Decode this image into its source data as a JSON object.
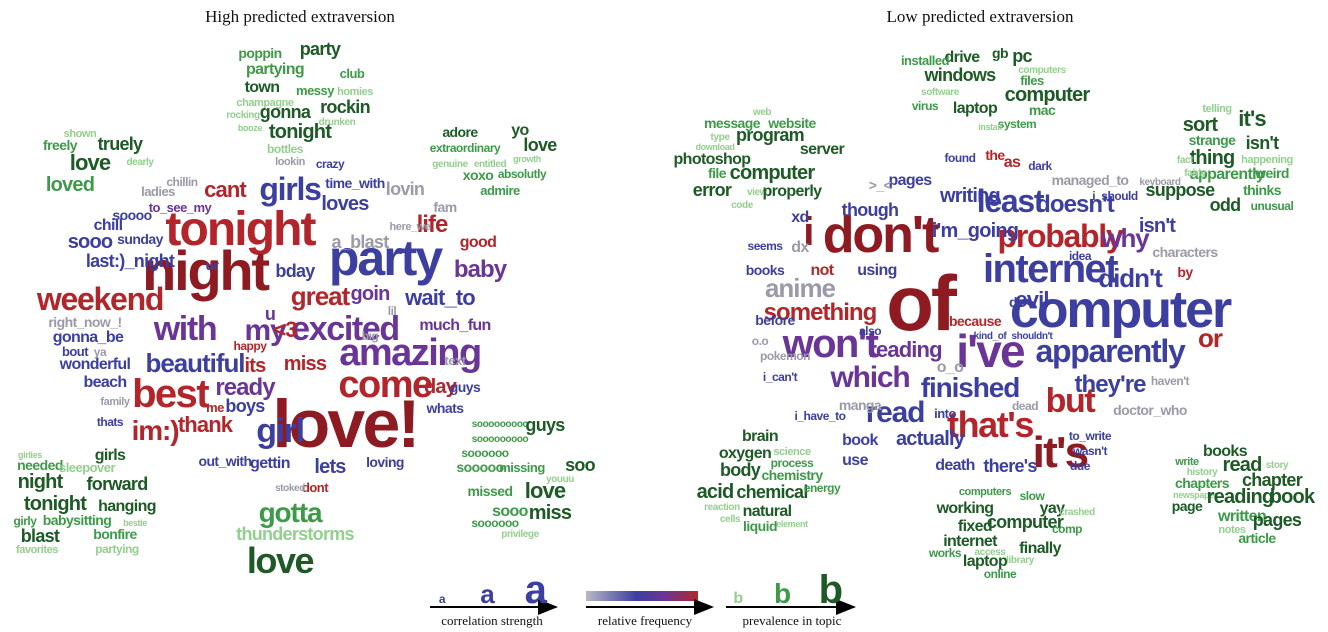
{
  "panels": [
    {
      "title": "High predicted extraversion",
      "words": [
        "tonight",
        "night",
        "party",
        "love!",
        "amazing",
        "come",
        "best",
        "excited",
        "girls",
        "weekend",
        "with",
        "my",
        "beautiful",
        "girl",
        "im:)",
        "great",
        "life",
        "baby",
        "wait_to",
        "cant",
        "loves",
        "ready",
        "thank",
        "miss",
        "day",
        "its",
        "goin",
        "much_fun",
        "<3",
        "good",
        "sooo",
        "last:)_night",
        "chill",
        "soooo",
        "sunday",
        "to_see_my",
        "ladies",
        "chillin",
        "a_blast",
        "time_with",
        "crazy",
        "lookin",
        "lovin",
        "fam",
        "here_we",
        "bday",
        "ur",
        "u",
        "gonna_be",
        "bout",
        "wonderful",
        "beach",
        "right_now_!",
        "ya",
        "family",
        "thats",
        "boys",
        "me",
        "happy",
        "gettin",
        "out_with",
        "lets",
        "loving",
        "dont",
        "whats",
        "guys",
        "text",
        "big",
        "lil",
        "stoked",
        "thunderstorms",
        "gotta",
        "love",
        "party",
        "poppin",
        "partying",
        "club",
        "town",
        "messy",
        "homies",
        "champagne",
        "rockin",
        "gonna",
        "rocking",
        "drunken",
        "booze",
        "tonight",
        "bottles",
        "adore",
        "yo",
        "love",
        "extraordinary",
        "genuine",
        "entitled",
        "growth",
        "xoxo",
        "absolutly",
        "admire",
        "shown",
        "freely",
        "truely",
        "dearly",
        "love",
        "loved",
        "girls",
        "needed",
        "sleepover",
        "night",
        "forward",
        "tonight",
        "hanging",
        "girly",
        "babysitting",
        "blast",
        "bonfire",
        "favorites",
        "partying",
        "bestie",
        "girlies",
        "sooooooooo",
        "guys",
        "sooooooooo",
        "soooooo",
        "soo",
        "sooooo",
        "missing",
        "youuu",
        "love",
        "missed",
        "sooo",
        "miss",
        "soooooo",
        "privilege"
      ]
    },
    {
      "title": "Low predicted extraversion",
      "words": [
        "of",
        "computer",
        "don't",
        "internet",
        "i've",
        "i",
        "probably",
        "least",
        "it's",
        "that's",
        "but",
        "won't",
        "which",
        "apparently",
        "finished",
        "they're",
        "read",
        "didn't",
        "why",
        "doesn't",
        "isn't",
        "or",
        "something",
        "anime",
        "evil",
        "i'm_going",
        "writing",
        "though",
        "xd",
        "dx",
        "not",
        "using",
        "reading",
        "actually",
        "there's",
        "book",
        "use",
        "death",
        "pages",
        "found",
        "the",
        "as",
        "dark",
        "managed_to",
        "keyboard",
        ">_<",
        "o_o",
        "manga",
        "before",
        "books",
        "seems",
        "o.o",
        "pokemon",
        "i_can't",
        "i_have_to",
        "into",
        "dead",
        "doctor_who",
        "haven't",
        "to_write",
        "wasn't",
        "due",
        "characters",
        "by",
        "idea",
        "i_should",
        "because",
        "also",
        "d:",
        "kind_of",
        "shouldn't",
        "drive",
        "gb",
        "pc",
        "installed",
        "computers",
        "windows",
        "files",
        "software",
        "computer",
        "virus",
        "laptop",
        "mac",
        "system",
        "install",
        "web",
        "message",
        "website",
        "type",
        "program",
        "download",
        "server",
        "photoshop",
        "file",
        "computer",
        "error",
        "view",
        "properly",
        "code",
        "telling",
        "sort",
        "it's",
        "strange",
        "isn't",
        "thing",
        "fact",
        "happening",
        "apparently",
        "weird",
        "fairly",
        "suppose",
        "thinks",
        "odd",
        "unusual",
        "brain",
        "oxygen",
        "science",
        "process",
        "body",
        "chemistry",
        "acid",
        "chemical",
        "energy",
        "reaction",
        "natural",
        "liquid",
        "cells",
        "element",
        "computers",
        "slow",
        "yay",
        "working",
        "crashed",
        "fixed",
        "computer",
        "comp",
        "internet",
        "access",
        "finally",
        "works",
        "laptop",
        "library",
        "online",
        "books",
        "read",
        "write",
        "chapter",
        "history",
        "chapters",
        "story",
        "newspaper",
        "reading",
        "book",
        "page",
        "written",
        "pages",
        "notes",
        "article"
      ]
    }
  ],
  "legend": {
    "correlation": {
      "glyphs": [
        "a",
        "a",
        "a"
      ],
      "label": "correlation strength"
    },
    "frequency": {
      "label": "relative frequency"
    },
    "prevalence": {
      "glyphs": [
        "b",
        "b",
        "b"
      ],
      "label": "prevalence in topic"
    }
  }
}
